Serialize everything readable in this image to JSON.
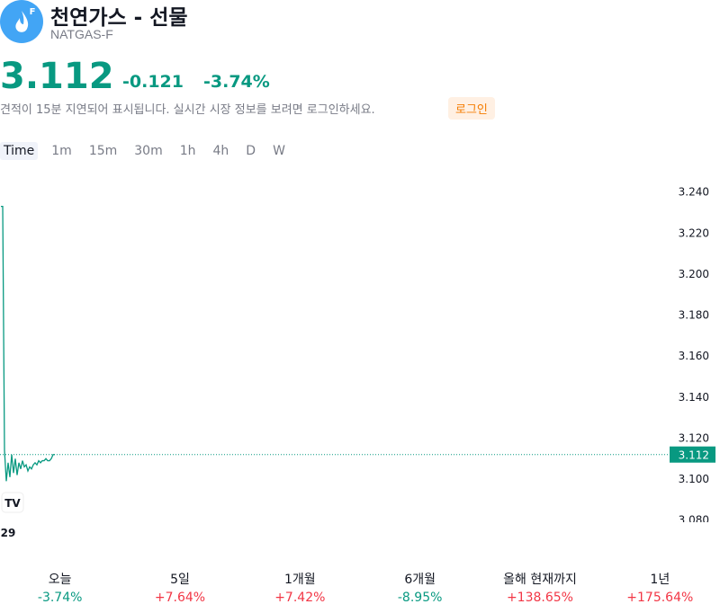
{
  "header": {
    "title": "천연가스 - 선물",
    "symbol": "NATGAS-F",
    "icon_letter": "F"
  },
  "quote": {
    "price": "3.112",
    "change": "-0.121",
    "change_percent": "-3.74%"
  },
  "notice": {
    "text": "견적이 15분 지연되어 표시됩니다. 실시간 시장 정보를 보려면 로그인하세요.",
    "login": "로그인"
  },
  "intervals": [
    "Time",
    "1m",
    "15m",
    "30m",
    "1h",
    "4h",
    "D",
    "W"
  ],
  "chart_data": {
    "type": "line",
    "categories": [
      null,
      null,
      null,
      null,
      "29",
      null,
      null,
      null,
      null,
      null,
      null,
      null,
      null,
      null,
      null,
      null,
      null,
      null,
      null,
      null,
      null,
      null,
      null,
      null,
      null,
      null,
      null,
      null,
      null,
      null,
      null
    ],
    "series": [
      {
        "color": "#089981",
        "values": [
          3.233,
          3.233,
          3.114,
          3.099,
          3.108,
          3.101,
          3.112,
          3.103,
          3.11,
          3.102,
          3.108,
          3.105,
          3.109,
          3.106,
          3.107,
          3.104,
          3.106,
          3.105,
          3.107,
          3.108,
          3.107,
          3.109,
          3.108,
          3.109,
          3.109,
          3.11,
          3.109,
          3.109,
          3.11,
          3.112,
          3.112
        ]
      }
    ],
    "last_price": 3.112,
    "ylim": [
      3.079,
      3.246
    ],
    "yticks": [
      {
        "value": 3.08,
        "label": "3.080"
      },
      {
        "value": 3.1,
        "label": "3.100"
      },
      {
        "value": 3.12,
        "label": "3.120"
      },
      {
        "value": 3.14,
        "label": "3.140"
      },
      {
        "value": 3.16,
        "label": "3.160"
      },
      {
        "value": 3.18,
        "label": "3.180"
      },
      {
        "value": 3.2,
        "label": "3.200"
      },
      {
        "value": 3.22,
        "label": "3.220"
      },
      {
        "value": 3.24,
        "label": "3.240"
      }
    ]
  },
  "performance": [
    {
      "label": "오늘",
      "value": "-3.74%"
    },
    {
      "label": "5일",
      "value": "+7.64%"
    },
    {
      "label": "1개월",
      "value": "+7.42%"
    },
    {
      "label": "6개월",
      "value": "-8.95%"
    },
    {
      "label": "올해 현재까지",
      "value": "+138.65%"
    },
    {
      "label": "1년",
      "value": "+175.64%"
    }
  ]
}
